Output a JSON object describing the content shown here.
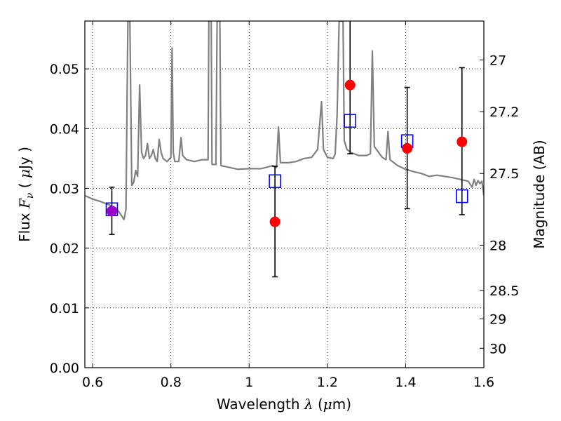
{
  "chart_data": {
    "type": "scatter",
    "xlabel": {
      "prefix": "Wavelength  ",
      "symbol": "λ",
      "unit_open": " (",
      "unit_sym": "μ",
      "unit_rest": "m)"
    },
    "ylabel": {
      "prefix": "Flux  ",
      "symbol": "F",
      "sub": "ν",
      "unit_open": "  ( ",
      "unit_sym": "μ",
      "unit_rest": "Jy )"
    },
    "y2label": "Magnitude (AB)",
    "xlim": [
      0.58,
      1.6
    ],
    "ylim": [
      0.0,
      0.058
    ],
    "grid": true,
    "x_ticks": [
      "0.6",
      "0.8",
      "1",
      "1.2",
      "1.4",
      "1.6"
    ],
    "x_tick_values": [
      0.6,
      0.8,
      1.0,
      1.2,
      1.4,
      1.6
    ],
    "y_ticks": [
      "0.00",
      "0.01",
      "0.02",
      "0.03",
      "0.04",
      "0.05"
    ],
    "y_tick_values": [
      0.0,
      0.01,
      0.02,
      0.03,
      0.04,
      0.05
    ],
    "y2_ticks": [
      "27",
      "27.2",
      "27.5",
      "28",
      "28.5",
      "29",
      "30"
    ],
    "y2_tick_values": [
      27,
      27.2,
      27.5,
      28,
      28.5,
      29,
      30
    ],
    "colors": {
      "model": "#808080",
      "observed": "#ff0000",
      "model_photometry": "#0000ff",
      "overlap": "#9900cc",
      "errorbar": "#000000",
      "grid": "#000000"
    },
    "series": [
      {
        "kind": "line",
        "points": [
          [
            0.58,
            0.0288
          ],
          [
            0.6,
            0.0282
          ],
          [
            0.62,
            0.0278
          ],
          [
            0.64,
            0.0273
          ],
          [
            0.66,
            0.0267
          ],
          [
            0.67,
            0.0258
          ],
          [
            0.68,
            0.0248
          ],
          [
            0.685,
            0.0265
          ],
          [
            0.69,
            0.058
          ],
          [
            0.695,
            0.058
          ],
          [
            0.7,
            0.0305
          ],
          [
            0.705,
            0.031
          ],
          [
            0.71,
            0.033
          ],
          [
            0.715,
            0.032
          ],
          [
            0.72,
            0.0473
          ],
          [
            0.725,
            0.036
          ],
          [
            0.73,
            0.035
          ],
          [
            0.735,
            0.0355
          ],
          [
            0.74,
            0.0375
          ],
          [
            0.745,
            0.035
          ],
          [
            0.75,
            0.0355
          ],
          [
            0.755,
            0.0365
          ],
          [
            0.76,
            0.035
          ],
          [
            0.765,
            0.0345
          ],
          [
            0.77,
            0.0382
          ],
          [
            0.775,
            0.036
          ],
          [
            0.78,
            0.035
          ],
          [
            0.79,
            0.0345
          ],
          [
            0.8,
            0.0352
          ],
          [
            0.803,
            0.0535
          ],
          [
            0.806,
            0.036
          ],
          [
            0.81,
            0.0345
          ],
          [
            0.82,
            0.0345
          ],
          [
            0.826,
            0.0385
          ],
          [
            0.83,
            0.0355
          ],
          [
            0.84,
            0.0348
          ],
          [
            0.86,
            0.0345
          ],
          [
            0.88,
            0.0348
          ],
          [
            0.895,
            0.0348
          ],
          [
            0.897,
            0.058
          ],
          [
            0.903,
            0.058
          ],
          [
            0.905,
            0.034
          ],
          [
            0.915,
            0.034
          ],
          [
            0.918,
            0.058
          ],
          [
            0.925,
            0.058
          ],
          [
            0.928,
            0.0338
          ],
          [
            0.95,
            0.0335
          ],
          [
            0.97,
            0.0332
          ],
          [
            1.0,
            0.0333
          ],
          [
            1.03,
            0.0333
          ],
          [
            1.06,
            0.0338
          ],
          [
            1.07,
            0.0335
          ],
          [
            1.075,
            0.0403
          ],
          [
            1.08,
            0.0343
          ],
          [
            1.1,
            0.0343
          ],
          [
            1.12,
            0.0345
          ],
          [
            1.14,
            0.035
          ],
          [
            1.16,
            0.0352
          ],
          [
            1.175,
            0.0365
          ],
          [
            1.185,
            0.0445
          ],
          [
            1.19,
            0.0365
          ],
          [
            1.2,
            0.0352
          ],
          [
            1.215,
            0.035
          ],
          [
            1.22,
            0.0358
          ],
          [
            1.225,
            0.0425
          ],
          [
            1.23,
            0.058
          ],
          [
            1.24,
            0.058
          ],
          [
            1.243,
            0.038
          ],
          [
            1.25,
            0.0365
          ],
          [
            1.26,
            0.036
          ],
          [
            1.28,
            0.0355
          ],
          [
            1.3,
            0.0355
          ],
          [
            1.31,
            0.0358
          ],
          [
            1.315,
            0.053
          ],
          [
            1.32,
            0.037
          ],
          [
            1.34,
            0.0352
          ],
          [
            1.35,
            0.0348
          ],
          [
            1.355,
            0.0395
          ],
          [
            1.36,
            0.0348
          ],
          [
            1.38,
            0.0338
          ],
          [
            1.4,
            0.0332
          ],
          [
            1.42,
            0.0328
          ],
          [
            1.44,
            0.0325
          ],
          [
            1.46,
            0.032
          ],
          [
            1.48,
            0.0322
          ],
          [
            1.5,
            0.032
          ],
          [
            1.52,
            0.0318
          ],
          [
            1.54,
            0.0315
          ],
          [
            1.56,
            0.0312
          ],
          [
            1.57,
            0.0302
          ],
          [
            1.575,
            0.0315
          ],
          [
            1.58,
            0.0305
          ],
          [
            1.585,
            0.0313
          ],
          [
            1.59,
            0.0308
          ],
          [
            1.595,
            0.0312
          ],
          [
            1.6,
            0.0288
          ]
        ]
      },
      {
        "kind": "points",
        "marker": "circle",
        "color_key": "observed",
        "points": [
          {
            "x": 0.649,
            "y": 0.0262,
            "yerr_low": 0.0223,
            "yerr_high": 0.0302,
            "color_key": "overlap"
          },
          {
            "x": 1.066,
            "y": 0.0244,
            "yerr_low": 0.0152,
            "yerr_high": 0.0337
          },
          {
            "x": 1.258,
            "y": 0.0473,
            "yerr_low": 0.0358,
            "yerr_high": 0.058
          },
          {
            "x": 1.404,
            "y": 0.0367,
            "yerr_low": 0.0266,
            "yerr_high": 0.0469
          },
          {
            "x": 1.544,
            "y": 0.0378,
            "yerr_low": 0.0256,
            "yerr_high": 0.0502
          }
        ]
      },
      {
        "kind": "points",
        "marker": "open-square",
        "color_key": "model_photometry",
        "points": [
          {
            "x": 0.649,
            "y": 0.0265
          },
          {
            "x": 1.066,
            "y": 0.0312
          },
          {
            "x": 1.258,
            "y": 0.0413
          },
          {
            "x": 1.404,
            "y": 0.0379
          },
          {
            "x": 1.544,
            "y": 0.0287
          }
        ]
      }
    ]
  }
}
